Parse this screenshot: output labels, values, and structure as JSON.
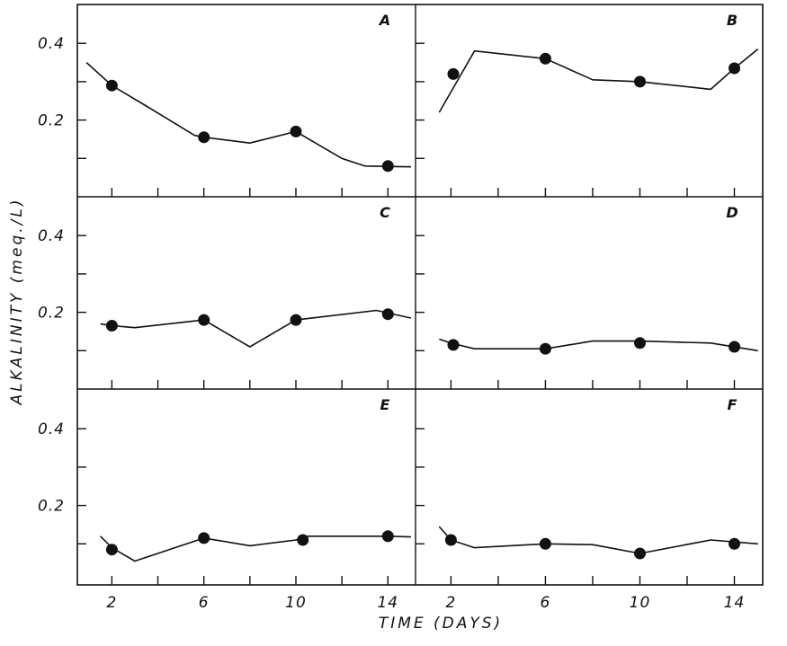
{
  "chart_data": {
    "type": "line",
    "ylabel": "ALKALINITY (meq./L)",
    "xlabel": "TIME (DAYS)",
    "xlim": [
      0.5,
      15.2
    ],
    "ylim": [
      0.0,
      0.49
    ],
    "x_ticks": [
      2,
      4,
      6,
      8,
      10,
      12,
      14
    ],
    "x_tick_labels": [
      "2",
      "6",
      "10",
      "14"
    ],
    "x_tick_label_values": [
      2,
      6,
      10,
      14
    ],
    "y_ticks": [
      0.1,
      0.2,
      0.3,
      0.4
    ],
    "y_tick_labels": [
      "0.2",
      "0.4"
    ],
    "y_tick_label_values": [
      0.2,
      0.4
    ],
    "grid": false,
    "panels": [
      {
        "label": "A",
        "line": {
          "x": [
            0.9,
            2,
            3.4,
            5.6,
            6,
            8,
            10,
            12,
            13,
            15
          ],
          "y": [
            0.35,
            0.29,
            0.24,
            0.16,
            0.155,
            0.14,
            0.17,
            0.1,
            0.08,
            0.078
          ]
        },
        "points": {
          "x": [
            2,
            6,
            10,
            14
          ],
          "y": [
            0.29,
            0.155,
            0.17,
            0.08
          ]
        }
      },
      {
        "label": "B",
        "line": {
          "x": [
            1.5,
            3,
            6,
            8,
            10,
            13,
            14,
            15
          ],
          "y": [
            0.22,
            0.38,
            0.36,
            0.305,
            0.3,
            0.28,
            0.335,
            0.385
          ]
        },
        "points": {
          "x": [
            2.1,
            6,
            10,
            14
          ],
          "y": [
            0.32,
            0.36,
            0.3,
            0.335
          ]
        }
      },
      {
        "label": "C",
        "line": {
          "x": [
            1.5,
            2,
            3,
            6,
            8,
            10,
            13.5,
            15
          ],
          "y": [
            0.17,
            0.165,
            0.16,
            0.18,
            0.11,
            0.18,
            0.205,
            0.185
          ]
        },
        "points": {
          "x": [
            2,
            6,
            10,
            14
          ],
          "y": [
            0.165,
            0.18,
            0.18,
            0.195
          ]
        }
      },
      {
        "label": "D",
        "line": {
          "x": [
            1.5,
            2,
            3,
            6,
            8,
            10,
            13,
            15
          ],
          "y": [
            0.13,
            0.12,
            0.105,
            0.105,
            0.125,
            0.125,
            0.12,
            0.1
          ]
        },
        "points": {
          "x": [
            2.1,
            6,
            10,
            14
          ],
          "y": [
            0.115,
            0.105,
            0.12,
            0.11
          ]
        }
      },
      {
        "label": "E",
        "line": {
          "x": [
            1.5,
            2,
            3,
            6,
            8,
            10,
            10.5,
            14,
            15
          ],
          "y": [
            0.12,
            0.09,
            0.055,
            0.115,
            0.095,
            0.11,
            0.12,
            0.12,
            0.118
          ]
        },
        "points": {
          "x": [
            2,
            6,
            10.3,
            14
          ],
          "y": [
            0.085,
            0.115,
            0.11,
            0.12
          ]
        }
      },
      {
        "label": "F",
        "line": {
          "x": [
            1.5,
            2,
            3,
            6,
            8,
            10,
            13,
            15
          ],
          "y": [
            0.145,
            0.11,
            0.09,
            0.1,
            0.098,
            0.075,
            0.11,
            0.1
          ]
        },
        "points": {
          "x": [
            2,
            6,
            10,
            14
          ],
          "y": [
            0.11,
            0.1,
            0.075,
            0.1
          ]
        }
      }
    ]
  }
}
